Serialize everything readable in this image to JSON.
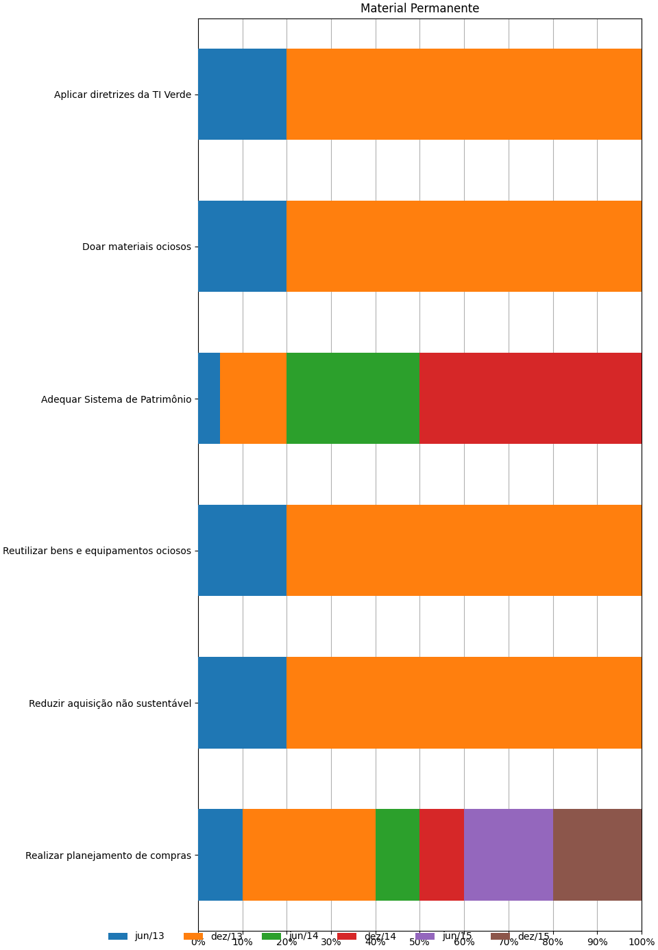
{
  "chart_data": {
    "type": "bar",
    "orientation": "horizontal",
    "stacked": true,
    "title": "Material Permanente",
    "categories": [
      "Realizar planejamento de compras",
      "Reduzir aquisição não sustentável",
      "Reutilizar bens e equipamentos ociosos",
      "Adequar Sistema de Patrimônio",
      "Doar materiais ociosos",
      "Aplicar diretrizes da TI Verde"
    ],
    "series": [
      {
        "name": "jun/13",
        "values": [
          10,
          20,
          20,
          5,
          20,
          20
        ]
      },
      {
        "name": "dez/13",
        "values": [
          30,
          80,
          80,
          15,
          80,
          80
        ]
      },
      {
        "name": "jun/14",
        "values": [
          10,
          0,
          0,
          30,
          0,
          0
        ]
      },
      {
        "name": "dez/14",
        "values": [
          10,
          0,
          0,
          50,
          0,
          0
        ]
      },
      {
        "name": "jun/15",
        "values": [
          20,
          0,
          0,
          0,
          0,
          0
        ]
      },
      {
        "name": "dez/15",
        "values": [
          20,
          0,
          0,
          0,
          0,
          0
        ]
      }
    ],
    "xlim": [
      0,
      100
    ],
    "xticks": [
      {
        "value": 0,
        "label": "0%"
      },
      {
        "value": 10,
        "label": "10%"
      },
      {
        "value": 20,
        "label": "20%"
      },
      {
        "value": 30,
        "label": "30%"
      },
      {
        "value": 40,
        "label": "40%"
      },
      {
        "value": 50,
        "label": "50%"
      },
      {
        "value": 60,
        "label": "60%"
      },
      {
        "value": 70,
        "label": "70%"
      },
      {
        "value": 80,
        "label": "80%"
      },
      {
        "value": 90,
        "label": "90%"
      },
      {
        "value": 100,
        "label": "100%"
      }
    ],
    "grid": true,
    "legend": "lower center"
  }
}
